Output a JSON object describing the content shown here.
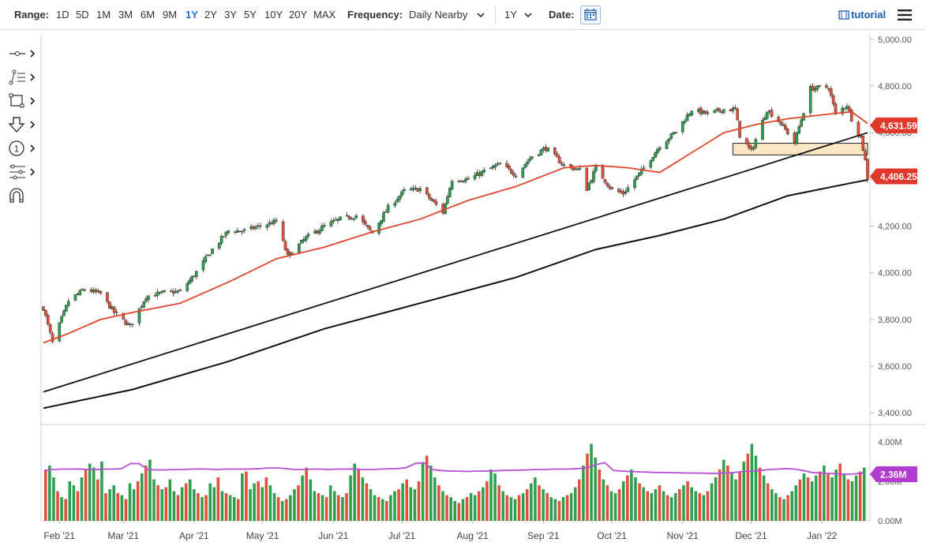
{
  "toolbar": {
    "range_label": "Range:",
    "ranges": [
      "1D",
      "5D",
      "1M",
      "3M",
      "6M",
      "9M",
      "1Y",
      "2Y",
      "3Y",
      "5Y",
      "10Y",
      "20Y",
      "MAX"
    ],
    "active_range": "1Y",
    "frequency_label": "Frequency:",
    "frequency_value": "Daily Nearby",
    "period_value": "1Y",
    "date_label": "Date:",
    "tutorial_label": "tutorial",
    "accent_color": "#1a74d1"
  },
  "left_tools": {
    "icons": [
      "crosshair-icon",
      "trendline-icon",
      "rectangle-icon",
      "arrow-down-icon",
      "numbered-marker-icon",
      "fibonacci-icon",
      "magnet-icon"
    ]
  },
  "chart_data": {
    "type": "candlestick",
    "price_axis": {
      "ticks": [
        "5,000.00",
        "4,800.00",
        "4,600.00",
        "4,400.00",
        "4,200.00",
        "4,000.00",
        "3,800.00",
        "3,600.00",
        "3,400.00"
      ],
      "ylim": [
        3350,
        5020
      ]
    },
    "volume_axis": {
      "ticks": [
        "4.00M",
        "2.00M",
        "0.00M"
      ],
      "ylim": [
        0,
        4.4
      ]
    },
    "x_ticks": [
      "Feb '21",
      "Mar '21",
      "Apr '21",
      "May '21",
      "Jun '21",
      "Jul '21",
      "Aug '21",
      "Sep '21",
      "Oct '21",
      "Nov '21",
      "Dec '21",
      "Jan '22"
    ],
    "badges": {
      "upper_price": "4,631.59",
      "last_price": "4,406.25",
      "volume": "2.36M"
    },
    "colors": {
      "up": "#2e9e4f",
      "down": "#e0503a",
      "ma50": "#e0482c",
      "ma200": "#111111",
      "trendline": "#111111",
      "zone_fill": "#fbe7c2",
      "volume_ma": "#b84fd6",
      "badge_red": "#e0392b",
      "badge_purple": "#b23cd0"
    },
    "price_path": [
      [
        "2021-01-25",
        3850
      ],
      [
        "2021-01-29",
        3700
      ],
      [
        "2021-02-05",
        3880
      ],
      [
        "2021-02-12",
        3930
      ],
      [
        "2021-02-19",
        3910
      ],
      [
        "2021-02-25",
        3830
      ],
      [
        "2021-03-04",
        3770
      ],
      [
        "2021-03-11",
        3900
      ],
      [
        "2021-03-19",
        3915
      ],
      [
        "2021-03-26",
        3920
      ],
      [
        "2021-04-01",
        3990
      ],
      [
        "2021-04-09",
        4100
      ],
      [
        "2021-04-16",
        4180
      ],
      [
        "2021-04-23",
        4180
      ],
      [
        "2021-04-30",
        4200
      ],
      [
        "2021-05-07",
        4220
      ],
      [
        "2021-05-12",
        4070
      ],
      [
        "2021-05-20",
        4150
      ],
      [
        "2021-05-28",
        4200
      ],
      [
        "2021-06-04",
        4230
      ],
      [
        "2021-06-11",
        4245
      ],
      [
        "2021-06-18",
        4170
      ],
      [
        "2021-06-25",
        4280
      ],
      [
        "2021-07-02",
        4350
      ],
      [
        "2021-07-09",
        4360
      ],
      [
        "2021-07-19",
        4260
      ],
      [
        "2021-07-23",
        4400
      ],
      [
        "2021-07-30",
        4400
      ],
      [
        "2021-08-06",
        4435
      ],
      [
        "2021-08-13",
        4465
      ],
      [
        "2021-08-20",
        4420
      ],
      [
        "2021-08-27",
        4500
      ],
      [
        "2021-09-02",
        4535
      ],
      [
        "2021-09-10",
        4460
      ],
      [
        "2021-09-17",
        4440
      ],
      [
        "2021-09-20",
        4360
      ],
      [
        "2021-09-24",
        4450
      ],
      [
        "2021-10-01",
        4355
      ],
      [
        "2021-10-06",
        4340
      ],
      [
        "2021-10-14",
        4435
      ],
      [
        "2021-10-22",
        4545
      ],
      [
        "2021-10-29",
        4605
      ],
      [
        "2021-11-05",
        4700
      ],
      [
        "2021-11-12",
        4680
      ],
      [
        "2021-11-19",
        4700
      ],
      [
        "2021-11-24",
        4700
      ],
      [
        "2021-11-26",
        4590
      ],
      [
        "2021-12-01",
        4520
      ],
      [
        "2021-12-08",
        4700
      ],
      [
        "2021-12-14",
        4640
      ],
      [
        "2021-12-20",
        4560
      ],
      [
        "2021-12-27",
        4790
      ],
      [
        "2022-01-04",
        4795
      ],
      [
        "2022-01-07",
        4680
      ],
      [
        "2022-01-12",
        4720
      ],
      [
        "2022-01-14",
        4660
      ],
      [
        "2022-01-18",
        4580
      ],
      [
        "2022-01-20",
        4480
      ],
      [
        "2022-01-21",
        4406
      ]
    ],
    "ma50": [
      [
        "2021-01-25",
        3700
      ],
      [
        "2021-02-05",
        3740
      ],
      [
        "2021-02-19",
        3800
      ],
      [
        "2021-03-05",
        3830
      ],
      [
        "2021-03-26",
        3870
      ],
      [
        "2021-04-16",
        3960
      ],
      [
        "2021-05-07",
        4060
      ],
      [
        "2021-05-28",
        4110
      ],
      [
        "2021-06-18",
        4175
      ],
      [
        "2021-07-09",
        4230
      ],
      [
        "2021-07-30",
        4310
      ],
      [
        "2021-08-20",
        4370
      ],
      [
        "2021-09-10",
        4450
      ],
      [
        "2021-09-24",
        4460
      ],
      [
        "2021-10-08",
        4450
      ],
      [
        "2021-10-22",
        4430
      ],
      [
        "2021-11-05",
        4515
      ],
      [
        "2021-11-19",
        4600
      ],
      [
        "2021-12-03",
        4635
      ],
      [
        "2021-12-17",
        4660
      ],
      [
        "2022-01-04",
        4680
      ],
      [
        "2022-01-14",
        4690
      ],
      [
        "2022-01-21",
        4640
      ]
    ],
    "ma200": [
      [
        "2021-01-25",
        3420
      ],
      [
        "2021-03-05",
        3500
      ],
      [
        "2021-04-16",
        3620
      ],
      [
        "2021-05-28",
        3760
      ],
      [
        "2021-07-09",
        3870
      ],
      [
        "2021-08-20",
        3980
      ],
      [
        "2021-09-24",
        4100
      ],
      [
        "2021-10-22",
        4160
      ],
      [
        "2021-11-19",
        4230
      ],
      [
        "2021-12-17",
        4330
      ],
      [
        "2022-01-14",
        4385
      ],
      [
        "2022-01-21",
        4398
      ]
    ],
    "trendline": [
      [
        "2021-01-25",
        3490
      ],
      [
        "2022-01-21",
        4600
      ]
    ],
    "zone": {
      "x0": "2021-11-23",
      "x1": "2022-01-21",
      "y0": 4505,
      "y1": 4555
    },
    "volume": {
      "values": [
        2.6,
        2.8,
        2.2,
        1.5,
        1.2,
        1.1,
        2.0,
        1.8,
        1.5,
        2.2,
        2.6,
        2.9,
        2.7,
        2.1,
        3.0,
        1.4,
        1.6,
        1.8,
        1.4,
        1.3,
        1.1,
        1.9,
        1.6,
        2.0,
        2.4,
        2.8,
        3.1,
        2.1,
        1.8,
        1.6,
        1.7,
        2.1,
        1.5,
        1.3,
        1.7,
        1.9,
        2.1,
        1.6,
        1.4,
        1.2,
        1.3,
        1.9,
        1.7,
        2.2,
        1.5,
        1.4,
        1.3,
        1.2,
        1.1,
        2.4,
        2.5,
        1.6,
        1.9,
        2.0,
        1.7,
        2.2,
        1.8,
        1.4,
        1.2,
        1.0,
        1.1,
        1.3,
        1.6,
        1.8,
        2.3,
        2.7,
        2.1,
        1.5,
        1.4,
        1.3,
        1.2,
        1.8,
        1.5,
        1.3,
        1.2,
        1.4,
        2.3,
        2.9,
        2.6,
        2.2,
        1.9,
        1.6,
        1.3,
        1.2,
        1.1,
        1.0,
        1.3,
        1.5,
        1.6,
        1.9,
        2.1,
        1.7,
        1.6,
        2.0,
        2.9,
        3.3,
        2.8,
        2.2,
        1.8,
        1.5,
        1.3,
        1.2,
        1.0,
        0.9,
        1.1,
        1.2,
        1.4,
        1.3,
        1.5,
        1.7,
        2.0,
        2.6,
        2.4,
        1.8,
        1.5,
        1.3,
        1.2,
        1.1,
        1.3,
        1.4,
        1.6,
        1.9,
        2.2,
        1.8,
        1.6,
        1.4,
        1.2,
        1.1,
        1.0,
        1.2,
        1.3,
        1.4,
        1.7,
        2.1,
        2.8,
        3.4,
        3.9,
        3.2,
        2.6,
        2.1,
        1.8,
        1.5,
        1.4,
        1.6,
        2.0,
        2.3,
        2.6,
        2.2,
        1.9,
        1.7,
        1.5,
        1.4,
        1.6,
        1.8,
        1.5,
        1.3,
        1.2,
        1.4,
        1.6,
        1.8,
        2.0,
        1.7,
        1.5,
        1.4,
        1.3,
        1.5,
        1.9,
        2.2,
        2.6,
        3.1,
        2.8,
        2.4,
        2.1,
        2.5,
        3.0,
        3.4,
        3.9,
        3.3,
        2.7,
        2.3,
        1.9,
        1.6,
        1.4,
        1.2,
        1.1,
        1.3,
        1.5,
        1.8,
        2.1,
        2.4,
        2.2,
        2.0,
        2.3,
        2.5,
        2.8,
        2.4,
        2.2,
        2.6,
        2.9,
        2.4,
        2.1,
        2.0,
        2.3,
        2.5,
        2.7
      ],
      "ma_values": [
        2.55,
        2.6,
        2.62,
        2.62,
        2.63,
        2.6,
        2.6,
        2.62,
        2.62,
        2.65,
        2.9,
        2.9,
        2.6,
        2.58,
        2.58,
        2.6,
        2.6,
        2.62,
        2.63,
        2.62,
        2.6,
        2.62,
        2.62,
        2.62,
        2.63,
        2.65,
        2.68,
        2.68,
        2.65,
        2.6,
        2.6,
        2.62,
        2.62,
        2.6,
        2.62,
        2.62,
        2.63,
        2.6,
        2.6,
        2.62,
        2.64,
        2.65,
        2.7,
        2.9,
        2.95,
        2.6,
        2.55,
        2.52,
        2.52,
        2.5,
        2.52,
        2.52,
        2.53,
        2.55,
        2.56,
        2.57,
        2.58,
        2.6,
        2.6,
        2.62,
        2.62,
        2.63,
        2.65,
        2.7,
        2.85,
        2.95,
        2.55,
        2.52,
        2.5,
        2.48,
        2.47,
        2.45,
        2.45,
        2.44,
        2.43,
        2.42,
        2.42,
        2.41,
        2.4,
        2.42,
        2.45,
        2.5,
        2.52,
        2.55,
        2.6,
        2.62,
        2.65,
        2.62,
        2.55,
        2.45,
        2.42,
        2.4,
        2.38,
        2.36,
        2.38,
        2.42
      ]
    }
  }
}
